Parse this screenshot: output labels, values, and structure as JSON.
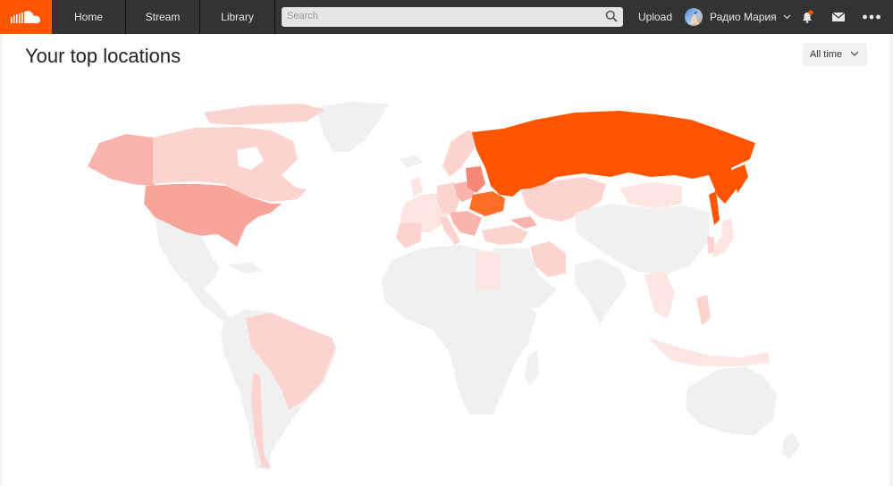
{
  "header": {
    "logo_icon": "soundcloud-logo-icon",
    "nav": [
      {
        "label": "Home"
      },
      {
        "label": "Stream"
      },
      {
        "label": "Library"
      }
    ],
    "search": {
      "placeholder": "Search",
      "icon": "search-icon"
    },
    "upload_label": "Upload",
    "user": {
      "name": "Радио Мария",
      "avatar_icon": "avatar"
    },
    "icons": [
      "bell-icon",
      "mail-icon",
      "more-icon"
    ],
    "notification_dot_color": "#ff5500"
  },
  "page": {
    "title": "Your top locations",
    "time_filter": {
      "selected": "All time"
    }
  },
  "map": {
    "colors": {
      "none": "#f0f0f0",
      "high": "#ff5500",
      "medium": "#fbb4ad",
      "light": "#fcd3cf",
      "faint": "#fde5e2",
      "usa": "#f9a49a"
    },
    "highlighted_countries": [
      {
        "name": "Russia",
        "level": "high"
      },
      {
        "name": "Ukraine",
        "level": "high"
      },
      {
        "name": "Belarus",
        "level": "medium"
      },
      {
        "name": "Poland",
        "level": "medium"
      },
      {
        "name": "United States",
        "level": "medium"
      },
      {
        "name": "Canada",
        "level": "light"
      },
      {
        "name": "Kazakhstan",
        "level": "light"
      },
      {
        "name": "Brazil",
        "level": "light"
      },
      {
        "name": "Mongolia",
        "level": "faint"
      },
      {
        "name": "Iran",
        "level": "light"
      },
      {
        "name": "Egypt",
        "level": "faint"
      }
    ]
  }
}
